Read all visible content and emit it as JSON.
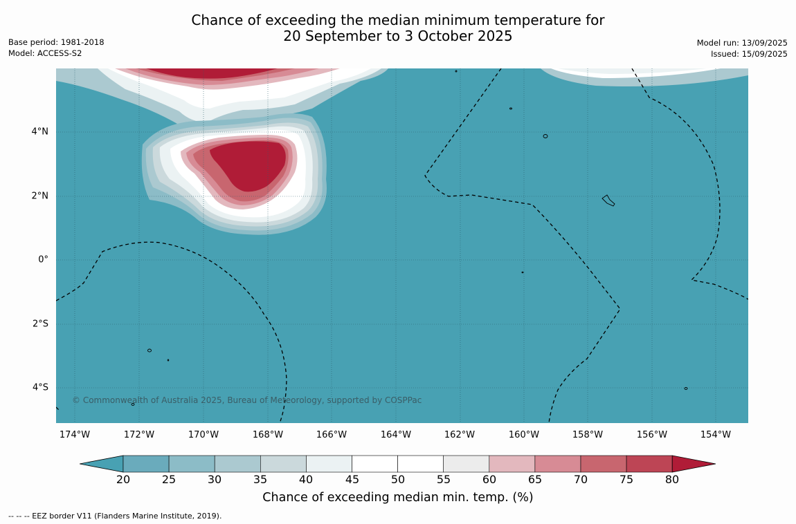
{
  "title": {
    "line1": "Chance of exceeding the median minimum temperature for",
    "line2": "20 September to 3 October 2025"
  },
  "meta_left": {
    "base_period": "Base period: 1981-2018",
    "model": "Model: ACCESS-S2"
  },
  "meta_right": {
    "model_run": "Model run: 13/09/2025",
    "issued": "Issued: 15/09/2025"
  },
  "map": {
    "background_color": "#48a1b3",
    "copyright": "© Commonwealth of Australia 2025, Bureau of Meteorology, supported by COSPPac",
    "lat_labels": [
      "4°N",
      "2°N",
      "0°",
      "2°S",
      "4°S"
    ],
    "lon_labels": [
      "174°W",
      "172°W",
      "170°W",
      "168°W",
      "166°W",
      "164°W",
      "162°W",
      "160°W",
      "158°W",
      "156°W",
      "154°W"
    ]
  },
  "colorbar": {
    "title": "Chance of exceeding median min. temp. (%)",
    "ticks": [
      "20",
      "25",
      "30",
      "35",
      "40",
      "45",
      "50",
      "55",
      "60",
      "65",
      "70",
      "75",
      "80"
    ],
    "colors": [
      "#48a1b3",
      "#6aabbc",
      "#8cbcc7",
      "#abc9d0",
      "#cbd9dc",
      "#ebf2f3",
      "#ffffff",
      "#ffffff",
      "#ececec",
      "#e3b8be",
      "#d78b95",
      "#c8666f",
      "#bd4555",
      "#b01c37"
    ]
  },
  "footer": {
    "eez_note": "--  --  -- EEZ border V11 (Flanders Marine Institute, 2019)."
  }
}
